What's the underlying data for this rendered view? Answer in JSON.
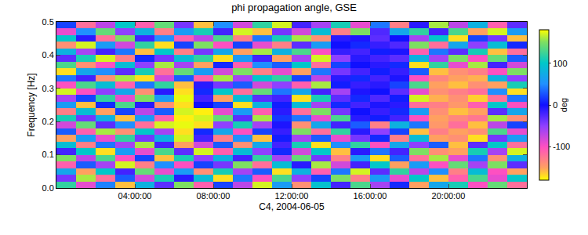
{
  "chart_data": {
    "type": "heatmap",
    "title": "phi propagation angle, GSE",
    "x_label": "C4, 2004-06-05",
    "y_label": "Frequency [Hz]",
    "x": [
      0.5,
      1.5,
      2.5,
      3.5,
      4.5,
      5.5,
      6.5,
      7.5,
      8.5,
      9.5,
      10.5,
      11.5,
      12.5,
      13.5,
      14.5,
      15.5,
      16.5,
      17.5,
      18.5,
      19.5,
      20.5,
      21.5,
      22.5,
      23.5
    ],
    "y": [
      0.01,
      0.03,
      0.05,
      0.07,
      0.09,
      0.11,
      0.13,
      0.15,
      0.17,
      0.19,
      0.21,
      0.23,
      0.25,
      0.27,
      0.29,
      0.31,
      0.33,
      0.35,
      0.37,
      0.39,
      0.41,
      0.43,
      0.45,
      0.47,
      0.49
    ],
    "xlim": [
      0,
      24
    ],
    "ylim": [
      0,
      0.5
    ],
    "xticks": [
      {
        "value": 4,
        "label": "04:00:00"
      },
      {
        "value": 8,
        "label": "08:00:00"
      },
      {
        "value": 12,
        "label": "12:00:00"
      },
      {
        "value": 16,
        "label": "16:00:00"
      },
      {
        "value": 20,
        "label": "20:00:00"
      }
    ],
    "yticks": [
      {
        "value": 0,
        "label": "0.0"
      },
      0.1,
      0.2,
      0.3,
      0.4,
      0.5
    ],
    "colorbar": {
      "label": "deg",
      "range": [
        -180,
        180
      ],
      "ticks": [
        -100,
        0,
        100
      ]
    },
    "z": [
      [
        120,
        -90,
        45,
        -160,
        80,
        -30,
        150,
        -110,
        20,
        -70,
        170,
        60,
        -140,
        95,
        -20,
        130,
        -60,
        10,
        -150,
        70,
        110,
        -100,
        140,
        -120
      ],
      [
        -40,
        160,
        -120,
        30,
        -80,
        110,
        -10,
        90,
        -170,
        40,
        -100,
        130,
        -50,
        20,
        150,
        -130,
        60,
        -90,
        100,
        -160,
        -110,
        130,
        -90,
        100
      ],
      [
        70,
        -150,
        100,
        -20,
        140,
        -90,
        60,
        -140,
        110,
        -60,
        30,
        -170,
        80,
        -110,
        40,
        170,
        -30,
        120,
        -70,
        50,
        -130,
        90,
        -100,
        -150
      ],
      [
        -110,
        30,
        -60,
        170,
        -130,
        50,
        -100,
        20,
        -40,
        150,
        -120,
        90,
        -10,
        160,
        -80,
        -20,
        100,
        -150,
        60,
        -100,
        140,
        -60,
        150,
        -30
      ],
      [
        150,
        -70,
        130,
        -100,
        20,
        -160,
        110,
        -50,
        80,
        -20,
        120,
        -60,
        140,
        -40,
        -130,
        60,
        -170,
        30,
        -120,
        160,
        -90,
        40,
        -140,
        80
      ],
      [
        -20,
        100,
        -170,
        60,
        -90,
        130,
        -30,
        170,
        -110,
        90,
        -50,
        10,
        -80,
        100,
        -160,
        -10,
        40,
        -20,
        150,
        -140,
        -150,
        110,
        -60,
        170
      ],
      [
        90,
        -130,
        40,
        -60,
        160,
        -20,
        -150,
        -80,
        30,
        -140,
        70,
        -20,
        110,
        -170,
        50,
        120,
        -100,
        70,
        -50,
        30,
        -160,
        -30,
        100,
        -120
      ],
      [
        -150,
        60,
        -90,
        120,
        -40,
        80,
        170,
        -20,
        -130,
        50,
        -160,
        5,
        -60,
        30,
        -90,
        -40,
        10,
        -130,
        90,
        -150,
        -140,
        -170,
        -40,
        60
      ],
      [
        30,
        -110,
        160,
        -140,
        100,
        -60,
        -170,
        10,
        70,
        -100,
        20,
        -15,
        150,
        -120,
        120,
        -10,
        -50,
        20,
        -160,
        -130,
        -150,
        -140,
        130,
        -90
      ],
      [
        -80,
        140,
        -30,
        50,
        -120,
        170,
        175,
        -170,
        -50,
        110,
        -60,
        -5,
        -140,
        70,
        -20,
        30,
        -130,
        80,
        40,
        -145,
        -120,
        -160,
        -70,
        20
      ],
      [
        110,
        -40,
        80,
        -160,
        60,
        -110,
        -175,
        170,
        140,
        -30,
        160,
        15,
        40,
        -90,
        130,
        -10,
        5,
        -20,
        -100,
        -150,
        -135,
        -125,
        160,
        -140
      ],
      [
        -130,
        90,
        -150,
        20,
        -70,
        30,
        170,
        -175,
        -90,
        60,
        -110,
        -10,
        -120,
        150,
        -40,
        0,
        -15,
        10,
        60,
        -140,
        -160,
        -150,
        -30,
        70
      ],
      [
        60,
        -160,
        10,
        130,
        -10,
        -140,
        -170,
        0,
        20,
        -170,
        80,
        5,
        90,
        -60,
        10,
        -20,
        -5,
        -10,
        -120,
        -130,
        -145,
        -110,
        100,
        -100
      ],
      [
        -60,
        20,
        120,
        -90,
        150,
        60,
        175,
        -20,
        -150,
        90,
        -30,
        -20,
        -170,
        110,
        -30,
        10,
        -25,
        5,
        170,
        -155,
        -140,
        -165,
        -120,
        40
      ],
      [
        170,
        -100,
        -50,
        70,
        -140,
        -10,
        -170,
        10,
        100,
        -120,
        140,
        40,
        70,
        -20,
        -60,
        -5,
        0,
        -30,
        -90,
        -140,
        -130,
        -120,
        50,
        -170
      ],
      [
        -100,
        130,
        90,
        -110,
        40,
        120,
        -160,
        -10,
        -40,
        30,
        -80,
        -50,
        -110,
        160,
        5,
        -15,
        -10,
        20,
        130,
        -150,
        -160,
        -140,
        -150,
        110
      ],
      [
        40,
        -20,
        -140,
        160,
        -170,
        -80,
        30,
        -110,
        160,
        -60,
        100,
        120,
        20,
        -70,
        -10,
        10,
        -20,
        -5,
        -100,
        -135,
        -150,
        -155,
        80,
        -50
      ],
      [
        -170,
        70,
        50,
        -30,
        110,
        -120,
        140,
        60,
        -80,
        150,
        -130,
        -90,
        -150,
        40,
        -40,
        -20,
        5,
        -15,
        30,
        -160,
        -140,
        -130,
        -100,
        150
      ],
      [
        130,
        -140,
        -100,
        90,
        -50,
        160,
        -60,
        -150,
        10,
        -110,
        50,
        30,
        100,
        -120,
        20,
        0,
        -10,
        10,
        -170,
        120,
        -90,
        160,
        -20,
        -80
      ],
      [
        -30,
        110,
        170,
        -130,
        10,
        -40,
        90,
        120,
        -170,
        60,
        -20,
        -150,
        -60,
        170,
        -50,
        -10,
        -20,
        -30,
        80,
        -60,
        150,
        -100,
        140,
        30
      ],
      [
        80,
        -60,
        -20,
        40,
        -160,
        100,
        -130,
        -40,
        70,
        -150,
        160,
        80,
        130,
        -100,
        -15,
        -20,
        5,
        -5,
        -110,
        40,
        -30,
        110,
        -160,
        -120
      ],
      [
        -140,
        170,
        60,
        -80,
        120,
        -170,
        20,
        150,
        -100,
        20,
        -90,
        -130,
        -30,
        60,
        0,
        10,
        -15,
        -25,
        150,
        -120,
        70,
        -50,
        90,
        10
      ],
      [
        100,
        -10,
        -120,
        150,
        -20,
        50,
        -110,
        -70,
        130,
        -130,
        40,
        110,
        160,
        -140,
        -10,
        -5,
        -30,
        0,
        -60,
        100,
        -170,
        20,
        -40,
        -160
      ],
      [
        -90,
        50,
        140,
        -50,
        80,
        -130,
        60,
        110,
        -20,
        170,
        -160,
        -40,
        -80,
        90,
        -130,
        150,
        -25,
        70,
        120,
        -20,
        130,
        -150,
        170,
        60
      ],
      [
        20,
        -120,
        -70,
        100,
        -110,
        140,
        -40,
        -160,
        50,
        -80,
        120,
        170,
        -20,
        -60,
        110,
        -90,
        40,
        -130,
        -10,
        160,
        -70,
        80,
        -110,
        -30
      ]
    ]
  }
}
